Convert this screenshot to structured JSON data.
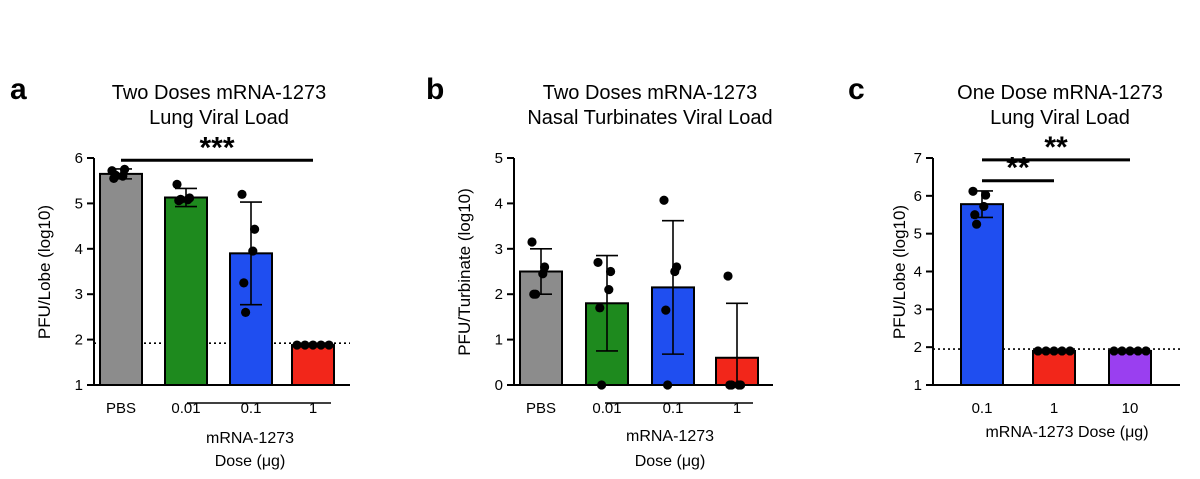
{
  "chart_data": [
    {
      "type": "bar",
      "panel": "a",
      "title": [
        "Two Doses mRNA-1273",
        "Lung Viral Load"
      ],
      "ylabel": "PFU/Lobe (log10)",
      "ylim": [
        1,
        6
      ],
      "yticks": [
        1,
        2,
        3,
        4,
        5,
        6
      ],
      "categories": [
        "PBS",
        "0.01",
        "0.1",
        "1"
      ],
      "group_label": [
        "mRNA-1273",
        "Dose (μg)"
      ],
      "values": [
        5.65,
        5.13,
        3.9,
        1.88
      ],
      "errors": [
        0.11,
        0.2,
        1.13,
        0.0
      ],
      "points": [
        [
          5.72,
          5.75,
          5.6,
          5.55,
          5.62
        ],
        [
          5.42,
          5.12,
          5.08,
          5.06,
          5.09
        ],
        [
          5.2,
          4.43,
          3.95,
          3.25,
          2.6
        ],
        [
          1.88,
          1.88,
          1.88,
          1.88,
          1.88
        ]
      ],
      "colors": [
        "#8c8c8c",
        "#1e8a1e",
        "#1f4ef0",
        "#f2261a"
      ],
      "detection_limit": 1.92,
      "significance": [
        {
          "from": 0,
          "to": 3,
          "label": "***",
          "y": 5.95
        }
      ]
    },
    {
      "type": "bar",
      "panel": "b",
      "title": [
        "Two Doses mRNA-1273",
        "Nasal Turbinates Viral Load"
      ],
      "ylabel": "PFU/Turbinate (log10)",
      "ylim": [
        0,
        5
      ],
      "yticks": [
        0,
        1,
        2,
        3,
        4,
        5
      ],
      "categories": [
        "PBS",
        "0.01",
        "0.1",
        "1"
      ],
      "group_label": [
        "mRNA-1273",
        "Dose (μg)"
      ],
      "values": [
        2.5,
        1.8,
        2.15,
        0.6
      ],
      "errors": [
        0.5,
        1.05,
        1.47,
        1.2
      ],
      "points": [
        [
          3.15,
          2.6,
          2.45,
          2.0,
          2.0
        ],
        [
          2.7,
          2.5,
          2.1,
          1.7,
          0.0
        ],
        [
          4.07,
          2.6,
          2.5,
          1.65,
          0.0
        ],
        [
          2.4,
          0.0,
          0.0,
          0.0,
          0.0
        ]
      ],
      "colors": [
        "#8c8c8c",
        "#1e8a1e",
        "#1f4ef0",
        "#f2261a"
      ],
      "detection_limit": null,
      "significance": []
    },
    {
      "type": "bar",
      "panel": "c",
      "title": [
        "One Dose mRNA-1273",
        "Lung Viral Load"
      ],
      "ylabel": "PFU/Lobe (log10)",
      "ylim": [
        1,
        7
      ],
      "yticks": [
        1,
        2,
        3,
        4,
        5,
        6,
        7
      ],
      "categories": [
        "0.1",
        "1",
        "10"
      ],
      "xlabel": "mRNA-1273 Dose (μg)",
      "values": [
        5.78,
        1.9,
        1.9
      ],
      "errors": [
        0.35,
        0.0,
        0.0
      ],
      "points": [
        [
          6.12,
          6.02,
          5.72,
          5.5,
          5.25
        ],
        [
          1.9,
          1.9,
          1.9,
          1.9,
          1.9
        ],
        [
          1.9,
          1.9,
          1.9,
          1.9,
          1.9
        ]
      ],
      "colors": [
        "#1f4ef0",
        "#f2261a",
        "#9a3ff0"
      ],
      "detection_limit": 1.95,
      "significance": [
        {
          "from": 0,
          "to": 1,
          "label": "**",
          "y": 6.4
        },
        {
          "from": 0,
          "to": 2,
          "label": "**",
          "y": 6.95
        }
      ]
    }
  ]
}
